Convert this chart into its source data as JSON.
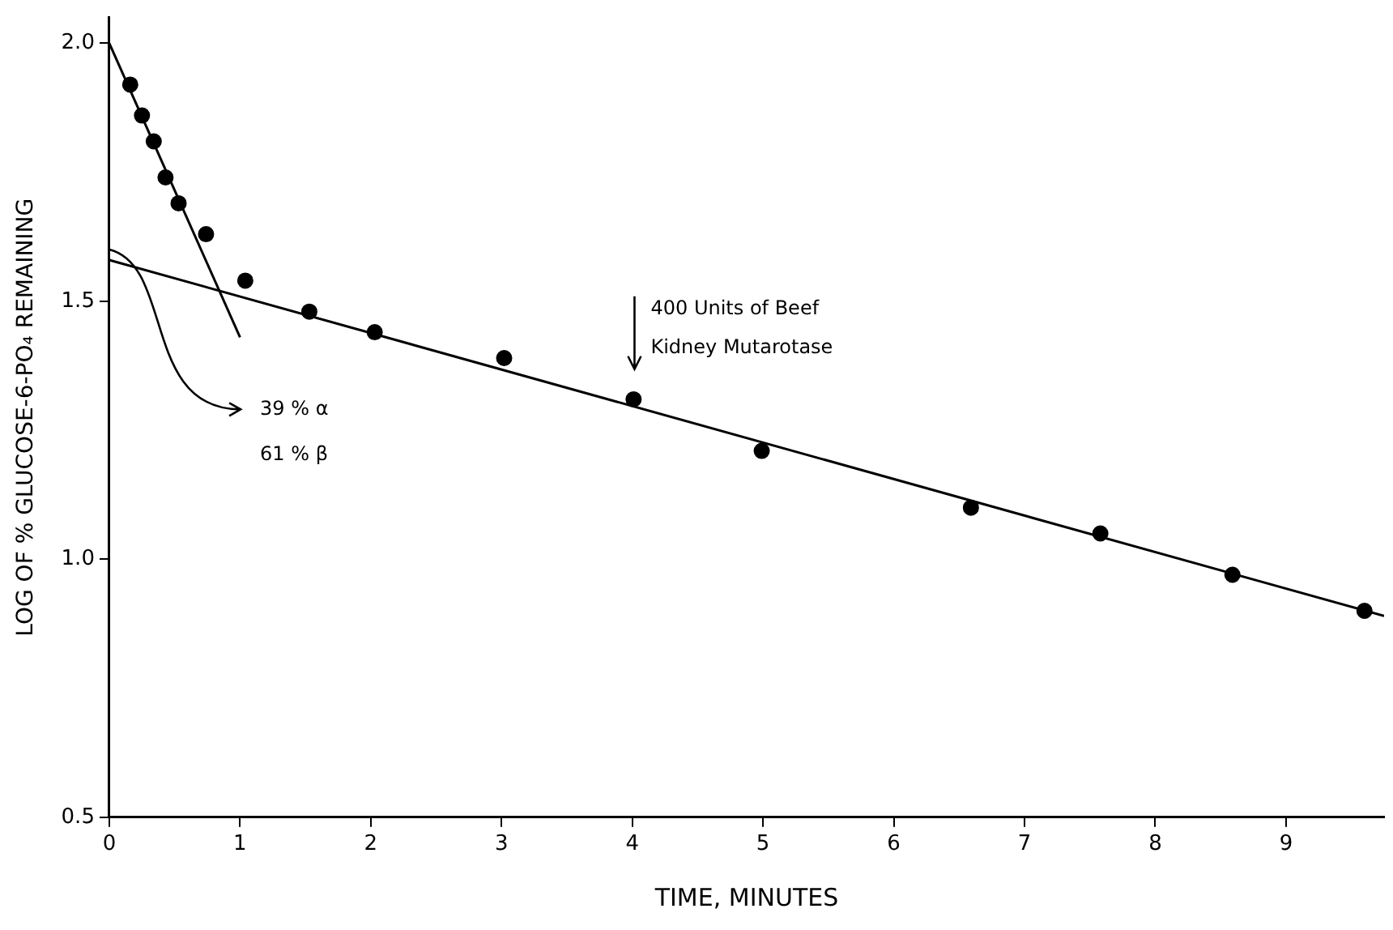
{
  "chart_data": {
    "type": "scatter",
    "xlabel": "TIME, MINUTES",
    "ylabel": "LOG OF % GLUCOSE-6-PO₄ REMAINING",
    "xlim": [
      0,
      9.75
    ],
    "xticks": [
      0,
      1,
      2,
      3,
      4,
      5,
      6,
      7,
      8,
      9
    ],
    "ylim": [
      0.5,
      2.05
    ],
    "yticks": [
      {
        "value": 0.5,
        "label": "0.5"
      },
      {
        "value": 1.0,
        "label": "1.0"
      },
      {
        "value": 1.5,
        "label": "1.5"
      },
      {
        "value": 2.0,
        "label": "2.0"
      }
    ],
    "grid": false,
    "legend": false,
    "marker": "circle",
    "series": [
      {
        "type": "scatter",
        "color": "#000000",
        "x": [
          0.16,
          0.25,
          0.34,
          0.43,
          0.53,
          0.74,
          1.04,
          1.53,
          2.03,
          3.02,
          4.01,
          4.99,
          6.59,
          7.58,
          8.59,
          9.6
        ],
        "values": [
          1.92,
          1.86,
          1.81,
          1.74,
          1.69,
          1.63,
          1.54,
          1.48,
          1.44,
          1.39,
          1.31,
          1.21,
          1.1,
          1.05,
          0.97,
          0.9
        ]
      },
      {
        "type": "line",
        "color": "#000000",
        "marker": "none",
        "x": [
          0,
          1.0
        ],
        "values": [
          2.0,
          1.43
        ]
      },
      {
        "type": "line",
        "color": "#000000",
        "marker": "none",
        "x": [
          0,
          9.75
        ],
        "values": [
          1.58,
          0.89
        ]
      }
    ],
    "annotations": [
      "400 Units of Beef",
      "Kidney Mutarotase",
      "39 % α",
      "61 % β"
    ]
  }
}
